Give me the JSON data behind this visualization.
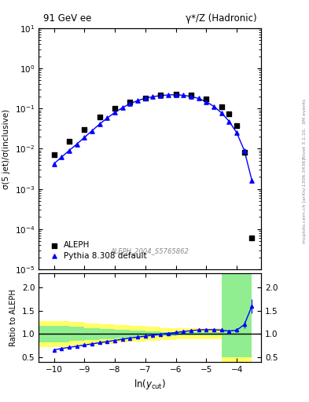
{
  "title_left": "91 GeV ee",
  "title_right": "γ*/Z (Hadronic)",
  "ylabel_main": "σ(5 jet)/σ(inclusive)",
  "ylabel_ratio": "Ratio to ALEPH",
  "xlabel": "ln(y_{cut})",
  "rivet_label": "Rivet 3.1.10,  3M events",
  "arxiv_label": "mcplots.cern.ch [arXiv:1306.3436]",
  "ref_label": "ALEPH_2004_S5765862",
  "legend_entries": [
    "ALEPH",
    "Pythia 8.308 default"
  ],
  "aleph_x": [
    -10.0,
    -9.5,
    -9.0,
    -8.5,
    -8.0,
    -7.5,
    -7.0,
    -6.5,
    -6.0,
    -5.5,
    -5.0,
    -4.5,
    -4.25,
    -4.0,
    -3.75,
    -3.5
  ],
  "aleph_y": [
    0.007,
    0.015,
    0.03,
    0.062,
    0.1,
    0.145,
    0.185,
    0.215,
    0.23,
    0.215,
    0.175,
    0.11,
    0.075,
    0.038,
    0.008,
    6e-05
  ],
  "pythia_x": [
    -10.0,
    -9.75,
    -9.5,
    -9.25,
    -9.0,
    -8.75,
    -8.5,
    -8.25,
    -8.0,
    -7.75,
    -7.5,
    -7.25,
    -7.0,
    -6.75,
    -6.5,
    -6.25,
    -6.0,
    -5.75,
    -5.5,
    -5.25,
    -5.0,
    -4.75,
    -4.5,
    -4.25,
    -4.0,
    -3.75,
    -3.5
  ],
  "pythia_y": [
    0.0042,
    0.0062,
    0.009,
    0.013,
    0.019,
    0.028,
    0.041,
    0.058,
    0.08,
    0.105,
    0.132,
    0.158,
    0.18,
    0.198,
    0.21,
    0.218,
    0.22,
    0.214,
    0.2,
    0.178,
    0.148,
    0.113,
    0.078,
    0.048,
    0.025,
    0.009,
    0.0016
  ],
  "ratio_x": [
    -10.0,
    -9.75,
    -9.5,
    -9.25,
    -9.0,
    -8.75,
    -8.5,
    -8.25,
    -8.0,
    -7.75,
    -7.5,
    -7.25,
    -7.0,
    -6.75,
    -6.5,
    -6.25,
    -6.0,
    -5.75,
    -5.5,
    -5.25,
    -5.0,
    -4.75,
    -4.5,
    -4.25,
    -4.0,
    -3.75,
    -3.5
  ],
  "ratio_y": [
    0.655,
    0.685,
    0.71,
    0.735,
    0.76,
    0.785,
    0.81,
    0.835,
    0.86,
    0.885,
    0.91,
    0.93,
    0.95,
    0.972,
    0.992,
    1.012,
    1.03,
    1.05,
    1.068,
    1.085,
    1.09,
    1.09,
    1.08,
    1.06,
    1.08,
    1.2,
    1.6
  ],
  "ratio_yerr": [
    0.03,
    0.02,
    0.02,
    0.02,
    0.02,
    0.02,
    0.02,
    0.02,
    0.02,
    0.02,
    0.02,
    0.02,
    0.02,
    0.02,
    0.02,
    0.02,
    0.02,
    0.02,
    0.02,
    0.02,
    0.02,
    0.02,
    0.02,
    0.03,
    0.05,
    0.08,
    0.15
  ],
  "green_band_edges": [
    -10.5,
    -9.5,
    -9.0,
    -8.5,
    -8.0,
    -7.5,
    -7.0,
    -6.5,
    -6.0,
    -5.5,
    -5.0,
    -4.5,
    -4.0,
    -3.5
  ],
  "green_low": [
    0.82,
    0.85,
    0.87,
    0.89,
    0.91,
    0.93,
    0.95,
    0.96,
    0.97,
    0.97,
    0.97,
    0.5,
    0.5
  ],
  "green_high": [
    1.18,
    1.15,
    1.13,
    1.11,
    1.09,
    1.07,
    1.05,
    1.04,
    1.03,
    1.03,
    1.03,
    2.3,
    2.3
  ],
  "yellow_low": [
    0.72,
    0.75,
    0.77,
    0.79,
    0.81,
    0.83,
    0.85,
    0.87,
    0.88,
    0.88,
    0.88,
    0.35,
    0.35
  ],
  "yellow_high": [
    1.28,
    1.25,
    1.23,
    1.21,
    1.19,
    1.17,
    1.15,
    1.13,
    1.12,
    1.12,
    1.12,
    2.6,
    2.6
  ],
  "ylim_main": [
    1e-05,
    10
  ],
  "ylim_ratio": [
    0.4,
    2.3
  ],
  "xlim": [
    -10.5,
    -3.2
  ],
  "yticks_ratio": [
    0.5,
    1.0,
    1.5,
    2.0
  ],
  "xticks": [
    -10,
    -9,
    -8,
    -7,
    -6,
    -5,
    -4
  ],
  "band_green": "#90ee90",
  "band_yellow": "#ffff66"
}
